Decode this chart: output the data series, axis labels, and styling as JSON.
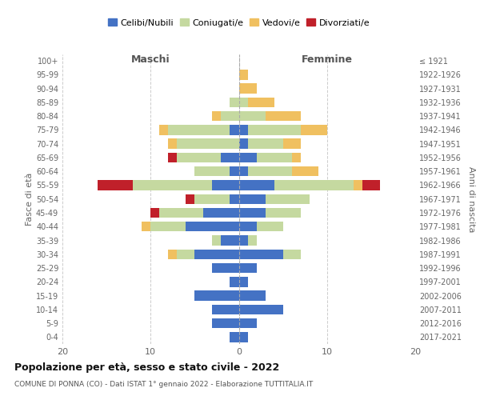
{
  "age_groups": [
    "0-4",
    "5-9",
    "10-14",
    "15-19",
    "20-24",
    "25-29",
    "30-34",
    "35-39",
    "40-44",
    "45-49",
    "50-54",
    "55-59",
    "60-64",
    "65-69",
    "70-74",
    "75-79",
    "80-84",
    "85-89",
    "90-94",
    "95-99",
    "100+"
  ],
  "birth_years": [
    "2017-2021",
    "2012-2016",
    "2007-2011",
    "2002-2006",
    "1997-2001",
    "1992-1996",
    "1987-1991",
    "1982-1986",
    "1977-1981",
    "1972-1976",
    "1967-1971",
    "1962-1966",
    "1957-1961",
    "1952-1956",
    "1947-1951",
    "1942-1946",
    "1937-1941",
    "1932-1936",
    "1927-1931",
    "1922-1926",
    "≤ 1921"
  ],
  "maschi_celibi": [
    1,
    3,
    3,
    5,
    1,
    3,
    5,
    2,
    6,
    4,
    1,
    3,
    1,
    2,
    0,
    1,
    0,
    0,
    0,
    0,
    0
  ],
  "maschi_coniugati": [
    0,
    0,
    0,
    0,
    0,
    0,
    2,
    1,
    4,
    5,
    4,
    9,
    4,
    5,
    7,
    7,
    2,
    1,
    0,
    0,
    0
  ],
  "maschi_vedovi": [
    0,
    0,
    0,
    0,
    0,
    0,
    1,
    0,
    1,
    0,
    0,
    0,
    0,
    0,
    1,
    1,
    1,
    0,
    0,
    0,
    0
  ],
  "maschi_divorziati": [
    0,
    0,
    0,
    0,
    0,
    0,
    0,
    0,
    0,
    1,
    1,
    4,
    0,
    1,
    0,
    0,
    0,
    0,
    0,
    0,
    0
  ],
  "femmine_celibi": [
    1,
    2,
    5,
    3,
    1,
    2,
    5,
    1,
    2,
    3,
    3,
    4,
    1,
    2,
    1,
    1,
    0,
    0,
    0,
    0,
    0
  ],
  "femmine_coniugati": [
    0,
    0,
    0,
    0,
    0,
    0,
    2,
    1,
    3,
    4,
    5,
    9,
    5,
    4,
    4,
    6,
    3,
    1,
    0,
    0,
    0
  ],
  "femmine_vedovi": [
    0,
    0,
    0,
    0,
    0,
    0,
    0,
    0,
    0,
    0,
    0,
    1,
    3,
    1,
    2,
    3,
    4,
    3,
    2,
    1,
    0
  ],
  "femmine_divorziati": [
    0,
    0,
    0,
    0,
    0,
    0,
    0,
    0,
    0,
    0,
    0,
    2,
    0,
    0,
    0,
    0,
    0,
    0,
    0,
    0,
    0
  ],
  "color_celibi": "#4472c4",
  "color_coniugati": "#c5d9a0",
  "color_vedovi": "#f0c060",
  "color_divorziati": "#c0202a",
  "xlim": 20,
  "title": "Popolazione per età, sesso e stato civile - 2022",
  "subtitle": "COMUNE DI PONNA (CO) - Dati ISTAT 1° gennaio 2022 - Elaborazione TUTTITALIA.IT",
  "ylabel_left": "Fasce di età",
  "ylabel_right": "Anni di nascita",
  "xlabel_maschi": "Maschi",
  "xlabel_femmine": "Femmine",
  "bg_color": "#ffffff",
  "grid_color": "#cccccc"
}
